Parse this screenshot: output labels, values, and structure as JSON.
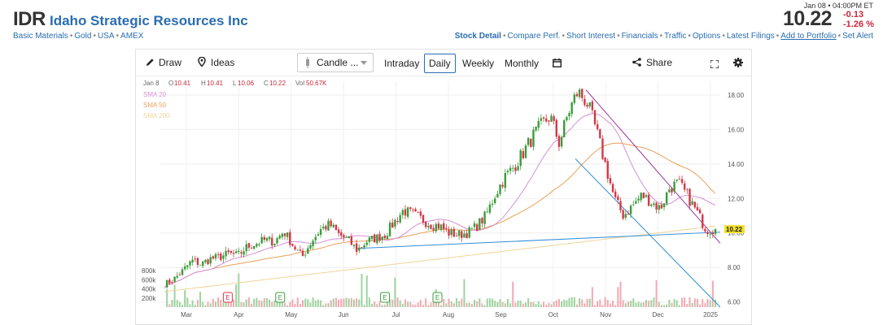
{
  "header": {
    "ticker": "IDR",
    "company": "Idaho Strategic Resources Inc",
    "tags": [
      "Basic Materials",
      "Gold",
      "USA",
      "AMEX"
    ]
  },
  "quote": {
    "time": "Jan 08 • 04:00PM ET",
    "price": "10.22",
    "change": "-0.13",
    "change_pct": "-1.26 %"
  },
  "links": [
    "Stock Detail",
    "Compare Perf.",
    "Short Interest",
    "Financials",
    "Traffic",
    "Options",
    "Latest Filings",
    "Add to Portfolio",
    "Set Alert"
  ],
  "toolbar": {
    "draw": "Draw",
    "ideas": "Ideas",
    "chart_type": "Candle ...",
    "ranges": [
      "Intraday",
      "Daily",
      "Weekly",
      "Monthly"
    ],
    "active_range": "Daily",
    "share": "Share"
  },
  "ohlc": {
    "date": "Jan 8",
    "o_label": "O",
    "o": "10.41",
    "h_label": "H",
    "h": "10.41",
    "l_label": "L",
    "l": "10.06",
    "c_label": "C",
    "c": "10.22",
    "vol_label": "Vol",
    "vol": "50.67K"
  },
  "colors": {
    "up": "#3b9c3b",
    "down": "#d23848",
    "sma20": "#d68fd4",
    "sma50": "#e8a15a",
    "sma200": "#eed49a",
    "trend_blue": "#2f8fd6",
    "trend_purple": "#9b3aa0",
    "link": "#2a6db0",
    "negative": "#c8283c",
    "price_tag": "#f3e02a"
  },
  "chart_data": {
    "type": "candlestick",
    "legend": [
      "SMA 20",
      "SMA 50",
      "SMA 200"
    ],
    "x_labels": [
      "Mar",
      "Apr",
      "May",
      "Jun",
      "Jul",
      "Aug",
      "Sep",
      "Oct",
      "Nov",
      "Dec",
      "2025"
    ],
    "y_ticks": [
      "18.00",
      "16.00",
      "14.00",
      "12.00",
      "10.00",
      "8.00",
      "6.00"
    ],
    "ylim": [
      5.7,
      18.8
    ],
    "last_price": "10.22",
    "volume_ticks": [
      "800k",
      "600k",
      "400k",
      "200k"
    ],
    "earnings_marker": "E",
    "earnings_months": [
      "Apr",
      "May",
      "Jul",
      "Aug"
    ],
    "close_series": [
      7.0,
      7.3,
      7.8,
      8.4,
      8.2,
      8.5,
      8.6,
      8.8,
      8.7,
      9.2,
      9.4,
      9.6,
      9.5,
      10.1,
      9.3,
      8.6,
      9.5,
      10.2,
      10.5,
      9.9,
      9.6,
      9.0,
      9.5,
      9.7,
      9.9,
      10.6,
      11.3,
      11.1,
      10.8,
      10.5,
      10.4,
      10.0,
      9.9,
      10.0,
      10.4,
      11.0,
      12.2,
      13.2,
      13.8,
      14.6,
      15.5,
      16.2,
      16.8,
      15.2,
      17.0,
      18.2,
      17.6,
      16.0,
      14.0,
      12.0,
      11.0,
      11.6,
      12.2,
      11.8,
      11.4,
      12.6,
      12.9,
      12.1,
      11.2,
      10.2,
      10.2
    ]
  }
}
